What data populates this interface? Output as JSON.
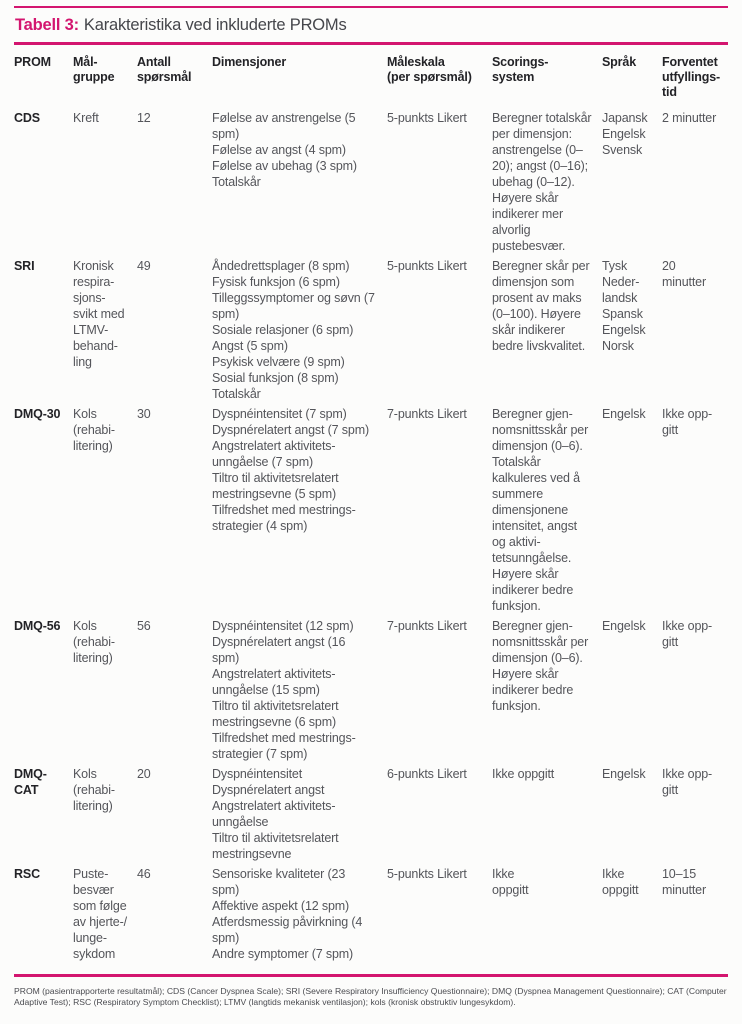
{
  "theme": {
    "accent": "#d3156f",
    "body_text": "#54555a",
    "heading_text": "#232327",
    "background": "#fcfcfb"
  },
  "table": {
    "title_label": "Tabell 3:",
    "title_text": "Karakteristika ved inkluderte PROMs",
    "columns": [
      "PROM",
      "Mål-\ngruppe",
      "Antall\nspørsmål",
      "Dimensjoner",
      "Måleskala\n(per spørsmål)",
      "Scorings-\nsystem",
      "Språk",
      "Forventet\nutfyllings-\ntid"
    ],
    "rows": [
      {
        "prom": "CDS",
        "malgruppe": "Kreft",
        "antall": "12",
        "dimensjoner": [
          "Følelse av anstrengelse (5 spm)",
          "Følelse av angst (4 spm)",
          "Følelse av ubehag (3 spm)",
          "Totalskår"
        ],
        "maleskala": "5-punkts Likert",
        "scoring": "Beregner totalskår per dimensjon: anstrengelse (0–20); angst (0–16); ubehag (0–12). Høyere skår indikerer mer alvorlig pustebesvær.",
        "sprak": [
          "Japansk",
          "Engelsk",
          "Svensk"
        ],
        "tid": "2 minutter"
      },
      {
        "prom": "SRI",
        "malgruppe": "Kronisk respira-sjons-svikt med LTMV-behand-ling",
        "antall": "49",
        "dimensjoner": [
          "Åndedrettsplager (8 spm)",
          "Fysisk funksjon (6 spm)",
          "Tilleggssymptomer og søvn (7 spm)",
          "Sosiale relasjoner (6 spm)",
          "Angst (5 spm)",
          "Psykisk velvære (9 spm)",
          "Sosial funksjon (8 spm)",
          "Totalskår"
        ],
        "maleskala": "5-punkts Likert",
        "scoring": "Beregner skår per dimensjon som prosent av maks (0–100). Høyere skår indikerer bedre livskvalitet.",
        "sprak": [
          "Tysk",
          "Neder-landsk",
          "Spansk",
          "Engelsk",
          "Norsk"
        ],
        "tid": "20 minutter"
      },
      {
        "prom": "DMQ-30",
        "malgruppe": "Kols (rehabi-litering)",
        "antall": "30",
        "dimensjoner": [
          "Dyspnéintensitet (7 spm)",
          "Dyspnérelatert angst (7 spm)",
          "Angstrelatert aktivitets-unngåelse (7 spm)",
          "Tiltro til aktivitetsrelatert mestringsevne (5 spm)",
          "Tilfredshet med mestrings-strategier (4 spm)"
        ],
        "maleskala": "7-punkts Likert",
        "scoring": "Beregner gjen-nomsnittsskår per dimensjon (0–6). Totalskår kalkuleres ved å summere dimensjonene intensitet, angst og aktivi-tetsunngåelse. Høyere skår indikerer bedre funksjon.",
        "sprak": [
          "Engelsk"
        ],
        "tid": "Ikke opp-gitt"
      },
      {
        "prom": "DMQ-56",
        "malgruppe": "Kols (rehabi-litering)",
        "antall": "56",
        "dimensjoner": [
          "Dyspnéintensitet (12 spm)",
          "Dyspnérelatert angst (16 spm)",
          "Angstrelatert aktivitets-unngåelse (15 spm)",
          "Tiltro til aktivitetsrelatert mestringsevne (6 spm)",
          "Tilfredshet med mestrings-strategier (7 spm)"
        ],
        "maleskala": "7-punkts Likert",
        "scoring": "Beregner gjen-nomsnittsskår per dimensjon (0–6). Høyere skår indikerer bedre funksjon.",
        "sprak": [
          "Engelsk"
        ],
        "tid": "Ikke opp-gitt"
      },
      {
        "prom": "DMQ-CAT",
        "malgruppe": "Kols (rehabi-litering)",
        "antall": "20",
        "dimensjoner": [
          "Dyspnéintensitet",
          "Dyspnérelatert angst",
          "Angstrelatert aktivitets-unngåelse",
          "Tiltro til aktivitetsrelatert mestringsevne"
        ],
        "maleskala": "6-punkts Likert",
        "scoring": "Ikke oppgitt",
        "sprak": [
          "Engelsk"
        ],
        "tid": "Ikke opp-gitt"
      },
      {
        "prom": "RSC",
        "malgruppe": "Puste-besvær som følge av hjerte-/ lunge-sykdom",
        "antall": "46",
        "dimensjoner": [
          "Sensoriske kvaliteter (23 spm)",
          "Affektive aspekt (12 spm)",
          "Atferdsmessig påvirkning (4 spm)",
          "Andre symptomer (7 spm)"
        ],
        "maleskala": "5-punkts Likert",
        "scoring": "Ikke\noppgitt",
        "sprak": [
          "Ikke\noppgitt"
        ],
        "tid": "10–15 minutter"
      }
    ],
    "footnote": "PROM (pasientrapporterte resultatmål); CDS (Cancer Dyspnea Scale); SRI (Severe Respiratory Insufficiency Questionnaire); DMQ (Dyspnea Management Questionnaire); CAT (Computer Adaptive Test); RSC (Respiratory Symptom Checklist); LTMV (langtids mekanisk ventilasjon); kols (kronisk obstruktiv lungesykdom)."
  }
}
